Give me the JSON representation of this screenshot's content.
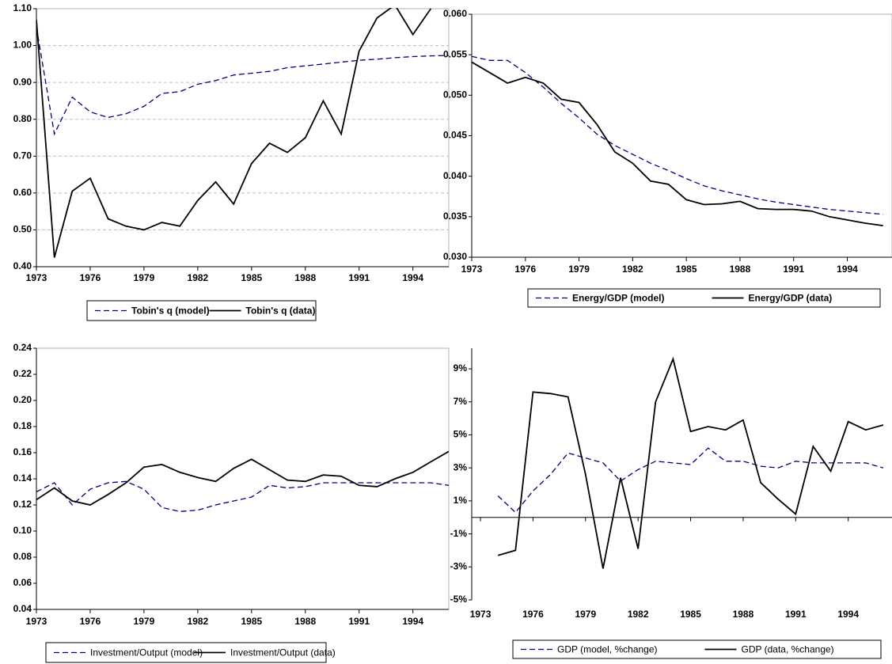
{
  "chart_data": [
    {
      "type": "line",
      "x": [
        1973,
        1974,
        1975,
        1976,
        1977,
        1978,
        1979,
        1980,
        1981,
        1982,
        1983,
        1984,
        1985,
        1986,
        1987,
        1988,
        1989,
        1990,
        1991,
        1992,
        1993,
        1994,
        1995,
        1996
      ],
      "series": [
        {
          "name": "Tobin's q (model)",
          "color": "#000080",
          "dashed": true,
          "values": [
            1.05,
            0.76,
            0.86,
            0.82,
            0.805,
            0.815,
            0.835,
            0.87,
            0.875,
            0.895,
            0.905,
            0.92,
            0.925,
            0.93,
            0.94,
            0.945,
            0.95,
            0.955,
            0.96,
            0.963,
            0.967,
            0.97,
            0.972,
            0.973
          ]
        },
        {
          "name": "Tobin's q (data)",
          "color": "#000000",
          "dashed": false,
          "values": [
            1.07,
            0.425,
            0.605,
            0.64,
            0.53,
            0.51,
            0.5,
            0.52,
            0.51,
            0.58,
            0.63,
            0.57,
            0.68,
            0.735,
            0.71,
            0.75,
            0.85,
            0.76,
            0.985,
            1.075,
            1.11,
            1.03,
            1.1,
            null
          ]
        }
      ],
      "xlim": [
        1973,
        1996
      ],
      "xticks": [
        1973,
        1976,
        1979,
        1982,
        1985,
        1988,
        1991,
        1994
      ],
      "ylim": [
        0.4,
        1.1
      ],
      "yticks": [
        {
          "value": 0.4,
          "label": "0.40"
        },
        {
          "value": 0.5,
          "label": "0.50"
        },
        {
          "value": 0.6,
          "label": "0.60"
        },
        {
          "value": 0.7,
          "label": "0.70"
        },
        {
          "value": 0.8,
          "label": "0.80"
        },
        {
          "value": 0.9,
          "label": "0.90"
        },
        {
          "value": 1.0,
          "label": "1.00"
        },
        {
          "value": 1.1,
          "label": "1.10"
        }
      ],
      "grid": true
    },
    {
      "type": "line",
      "x": [
        1973,
        1974,
        1975,
        1976,
        1977,
        1978,
        1979,
        1980,
        1981,
        1982,
        1983,
        1984,
        1985,
        1986,
        1987,
        1988,
        1989,
        1990,
        1991,
        1992,
        1993,
        1994,
        1995,
        1996
      ],
      "series": [
        {
          "name": "Energy/GDP (model)",
          "color": "#000080",
          "dashed": true,
          "values": [
            0.0548,
            0.0543,
            0.0543,
            0.0528,
            0.051,
            0.049,
            0.0472,
            0.0452,
            0.0438,
            0.0427,
            0.0416,
            0.0407,
            0.0397,
            0.0388,
            0.0382,
            0.0377,
            0.0372,
            0.0368,
            0.0365,
            0.0362,
            0.0359,
            0.0357,
            0.0355,
            0.0353
          ]
        },
        {
          "name": "Energy/GDP (data)",
          "color": "#000000",
          "dashed": false,
          "values": [
            0.0541,
            0.0528,
            0.0515,
            0.0522,
            0.0515,
            0.0495,
            0.0491,
            0.0464,
            0.043,
            0.0416,
            0.0394,
            0.039,
            0.0371,
            0.0365,
            0.0366,
            0.0369,
            0.036,
            0.0359,
            0.0359,
            0.0357,
            0.035,
            0.0346,
            0.0342,
            0.0339
          ]
        }
      ],
      "xlim": [
        1973,
        1996.5
      ],
      "xticks": [
        1973,
        1976,
        1979,
        1982,
        1985,
        1988,
        1991,
        1994
      ],
      "ylim": [
        0.03,
        0.06
      ],
      "yticks": [
        {
          "value": 0.03,
          "label": "0.030"
        },
        {
          "value": 0.035,
          "label": "0.035"
        },
        {
          "value": 0.04,
          "label": "0.040"
        },
        {
          "value": 0.045,
          "label": "0.045"
        },
        {
          "value": 0.05,
          "label": "0.050"
        },
        {
          "value": 0.055,
          "label": "0.055"
        },
        {
          "value": 0.06,
          "label": "0.060"
        }
      ],
      "grid": false
    },
    {
      "type": "line",
      "x": [
        1973,
        1974,
        1975,
        1976,
        1977,
        1978,
        1979,
        1980,
        1981,
        1982,
        1983,
        1984,
        1985,
        1986,
        1987,
        1988,
        1989,
        1990,
        1991,
        1992,
        1993,
        1994,
        1995,
        1996
      ],
      "series": [
        {
          "name": "Investment/Output (model)",
          "color": "#000080",
          "dashed": true,
          "values": [
            0.13,
            0.137,
            0.12,
            0.132,
            0.137,
            0.138,
            0.132,
            0.118,
            0.115,
            0.116,
            0.12,
            0.123,
            0.126,
            0.135,
            0.133,
            0.134,
            0.137,
            0.137,
            0.137,
            0.137,
            0.137,
            0.137,
            0.137,
            0.135
          ]
        },
        {
          "name": "Investment/Output (data)",
          "color": "#000000",
          "dashed": false,
          "values": [
            0.124,
            0.133,
            0.123,
            0.12,
            0.128,
            0.137,
            0.149,
            0.151,
            0.145,
            0.141,
            0.138,
            0.148,
            0.155,
            0.147,
            0.139,
            0.138,
            0.143,
            0.142,
            0.135,
            0.134,
            0.14,
            0.145,
            0.153,
            0.161
          ]
        }
      ],
      "xlim": [
        1973,
        1996
      ],
      "xticks": [
        1973,
        1976,
        1979,
        1982,
        1985,
        1988,
        1991,
        1994
      ],
      "ylim": [
        0.04,
        0.24
      ],
      "yticks": [
        0.04,
        0.06,
        0.08,
        {
          "value": 0.1,
          "label": "0.10"
        },
        0.12,
        0.14,
        0.16,
        0.18,
        {
          "value": 0.2,
          "label": "0.20"
        },
        0.22,
        0.24
      ],
      "grid": false
    },
    {
      "type": "line",
      "x": [
        1973,
        1974,
        1975,
        1976,
        1977,
        1978,
        1979,
        1980,
        1981,
        1982,
        1983,
        1984,
        1985,
        1986,
        1987,
        1988,
        1989,
        1990,
        1991,
        1992,
        1993,
        1994,
        1995,
        1996
      ],
      "series": [
        {
          "name": "GDP (model, %change)",
          "color": "#000080",
          "dashed": true,
          "values": [
            null,
            1.3,
            0.3,
            1.6,
            2.6,
            3.9,
            3.6,
            3.3,
            2.2,
            2.9,
            3.4,
            3.3,
            3.2,
            4.2,
            3.4,
            3.4,
            3.1,
            3.0,
            3.4,
            3.3,
            3.3,
            3.3,
            3.3,
            3.0
          ]
        },
        {
          "name": "GDP (data, %change)",
          "color": "#000000",
          "dashed": false,
          "values": [
            null,
            -2.3,
            -2.0,
            7.6,
            7.5,
            7.3,
            2.6,
            -3.1,
            2.4,
            -1.9,
            7.0,
            9.6,
            5.2,
            5.5,
            5.3,
            5.9,
            2.1,
            1.1,
            0.2,
            4.3,
            2.8,
            5.8,
            5.3,
            5.6
          ]
        }
      ],
      "xlim": [
        1972.5,
        1996.5
      ],
      "xticks": [
        1973,
        1976,
        1979,
        1982,
        1985,
        1988,
        1991,
        1994
      ],
      "ylim": [
        -5,
        10.25
      ],
      "yticks": [
        {
          "value": -5,
          "label": "-5%"
        },
        {
          "value": -3,
          "label": "-3%"
        },
        {
          "value": -1,
          "label": "-1%"
        },
        {
          "value": 1,
          "label": "1%"
        },
        {
          "value": 3,
          "label": "3%"
        },
        {
          "value": 5,
          "label": "5%"
        },
        {
          "value": 7,
          "label": "7%"
        },
        {
          "value": 9,
          "label": "9%"
        }
      ],
      "grid": false
    }
  ]
}
